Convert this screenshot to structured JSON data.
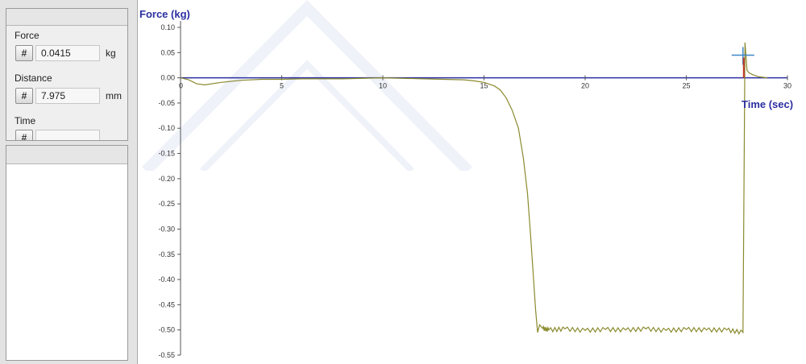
{
  "readouts": {
    "force": {
      "label": "Force",
      "button": "#",
      "value": "0.0415",
      "unit": "kg"
    },
    "distance": {
      "label": "Distance",
      "button": "#",
      "value": "7.975",
      "unit": "mm"
    },
    "time": {
      "label": "Time",
      "button": "#"
    }
  },
  "chart_data": {
    "type": "line",
    "ylabel": "Force (kg)",
    "xlabel": "Time (sec)",
    "xlim": [
      0,
      30
    ],
    "ylim": [
      -0.55,
      0.1
    ],
    "x_ticks": [
      "5",
      "10",
      "15",
      "20",
      "25",
      "30"
    ],
    "y_ticks": [
      "0.10",
      "0.05",
      "0.00",
      "-0.05",
      "-0.10",
      "-0.15",
      "-0.20",
      "-0.25",
      "-0.30",
      "-0.35",
      "-0.40",
      "-0.45",
      "-0.50",
      "-0.55"
    ],
    "x_tick_origin": "0",
    "series": [
      {
        "color": "#8a8a2e",
        "x": [
          0,
          0.4,
          0.8,
          1.2,
          2,
          3,
          4,
          5,
          6,
          8,
          10,
          12,
          13,
          14,
          14.5,
          15,
          15.5,
          15.8,
          16.1,
          16.4,
          16.7,
          16.95,
          17.15,
          17.3,
          17.45,
          17.55,
          17.65,
          17.75,
          17.9,
          18.2,
          19,
          20,
          21,
          22,
          23,
          24,
          25,
          26,
          27,
          27.8,
          27.9,
          28,
          28.1,
          28.3,
          28.6,
          29
        ],
        "y": [
          0.0,
          -0.004,
          -0.012,
          -0.014,
          -0.009,
          -0.005,
          -0.003,
          -0.003,
          -0.002,
          -0.002,
          0.0,
          -0.002,
          -0.003,
          -0.004,
          -0.006,
          -0.009,
          -0.016,
          -0.024,
          -0.04,
          -0.065,
          -0.1,
          -0.16,
          -0.23,
          -0.31,
          -0.4,
          -0.46,
          -0.505,
          -0.49,
          -0.497,
          -0.5,
          -0.498,
          -0.501,
          -0.499,
          -0.5,
          -0.498,
          -0.501,
          -0.499,
          -0.5,
          -0.5,
          -0.505,
          0.07,
          0.015,
          0.01,
          0.006,
          0.002,
          0.0
        ]
      }
    ],
    "cursor": {
      "x": 27.8,
      "y": 0.045,
      "color": "#3f86c6"
    }
  }
}
